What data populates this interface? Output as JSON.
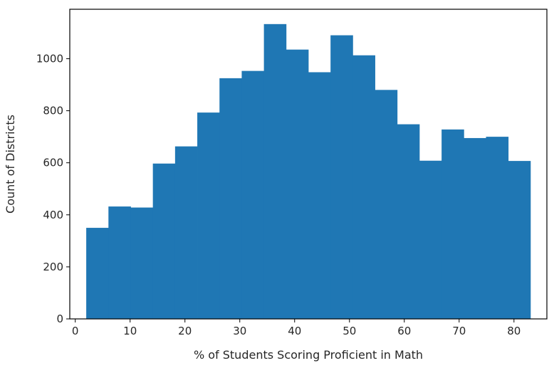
{
  "chart_data": {
    "type": "bar",
    "title": "",
    "xlabel": "% of Students Scoring Proficient in Math",
    "ylabel": "Count of Districts",
    "color": "#1f77b4",
    "grid": false,
    "xlim": [
      -1,
      86
    ],
    "ylim": [
      0,
      1190
    ],
    "xticks": [
      0,
      10,
      20,
      30,
      40,
      50,
      60,
      70,
      80
    ],
    "yticks": [
      0,
      200,
      400,
      600,
      800,
      1000
    ],
    "bins": [
      {
        "x0": 2.0,
        "x1": 6.05,
        "value": 350
      },
      {
        "x0": 6.05,
        "x1": 10.1,
        "value": 432
      },
      {
        "x0": 10.1,
        "x1": 14.15,
        "value": 428
      },
      {
        "x0": 14.15,
        "x1": 18.2,
        "value": 597
      },
      {
        "x0": 18.2,
        "x1": 22.25,
        "value": 663
      },
      {
        "x0": 22.25,
        "x1": 26.3,
        "value": 793
      },
      {
        "x0": 26.3,
        "x1": 30.35,
        "value": 925
      },
      {
        "x0": 30.35,
        "x1": 34.4,
        "value": 953
      },
      {
        "x0": 34.4,
        "x1": 38.45,
        "value": 1133
      },
      {
        "x0": 38.45,
        "x1": 42.5,
        "value": 1035
      },
      {
        "x0": 42.5,
        "x1": 46.55,
        "value": 948
      },
      {
        "x0": 46.55,
        "x1": 50.6,
        "value": 1090
      },
      {
        "x0": 50.6,
        "x1": 54.65,
        "value": 1013
      },
      {
        "x0": 54.65,
        "x1": 58.7,
        "value": 880
      },
      {
        "x0": 58.7,
        "x1": 62.75,
        "value": 748
      },
      {
        "x0": 62.75,
        "x1": 66.8,
        "value": 608
      },
      {
        "x0": 66.8,
        "x1": 70.85,
        "value": 728
      },
      {
        "x0": 70.85,
        "x1": 74.9,
        "value": 695
      },
      {
        "x0": 74.9,
        "x1": 78.95,
        "value": 700
      },
      {
        "x0": 78.95,
        "x1": 83.0,
        "value": 607
      }
    ]
  }
}
